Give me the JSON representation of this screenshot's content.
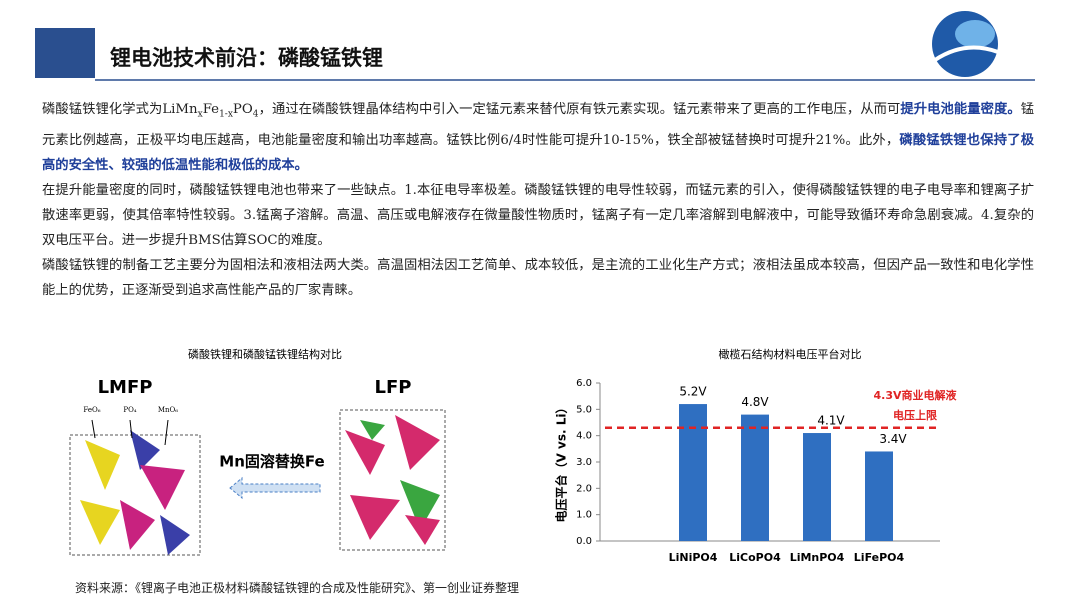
{
  "header": {
    "title": "锂电池技术前沿：磷酸锰铁锂"
  },
  "paragraphs": [
    {
      "segments": [
        {
          "t": "磷酸锰铁锂化学式为LiMn",
          "kind": "normal"
        },
        {
          "t": "x",
          "kind": "sub"
        },
        {
          "t": "Fe",
          "kind": "normal"
        },
        {
          "t": "1-x",
          "kind": "sub"
        },
        {
          "t": "PO",
          "kind": "normal"
        },
        {
          "t": "4",
          "kind": "sub"
        },
        {
          "t": "，通过在磷酸铁锂晶体结构中引入一定锰元素来替代原有铁元素实现。锰元素带来了更高的工作电压，从而可",
          "kind": "normal"
        },
        {
          "t": "提升电池能量密度。",
          "kind": "bold"
        },
        {
          "t": "锰元素比例越高，正极平均电压越高，电池能量密度和输出功率越高。锰铁比例6/4时性能可提升10-15%，铁全部被锰替换时可提升21%。此外，",
          "kind": "normal"
        },
        {
          "t": "磷酸锰铁锂也保持了极高的安全性、较强的低温性能和极低的成本。",
          "kind": "bold"
        }
      ]
    },
    {
      "segments": [
        {
          "t": "在提升能量密度的同时，磷酸锰铁锂电池也带来了一些缺点。1.本征电导率极差。磷酸锰铁锂的电导性较弱，而锰元素的引入，使得磷酸锰铁锂的电子电导率和锂离子扩散速率更弱，使其倍率特性较弱。3.锰离子溶解。高温、高压或电解液存在微量酸性物质时，锰离子有一定几率溶解到电解液中，可能导致循环寿命急剧衰减。4.复杂的双电压平台。进一步提升BMS估算SOC的难度。",
          "kind": "normal"
        }
      ]
    },
    {
      "segments": [
        {
          "t": "磷酸锰铁锂的制备工艺主要分为固相法和液相法两大类。高温固相法因工艺简单、成本较低，是主流的工业化生产方式；液相法虽成本较高，但因产品一致性和电化学性能上的优势，正逐渐受到追求高性能产品的厂家青睐。",
          "kind": "normal"
        }
      ]
    }
  ],
  "figure": {
    "caption": "磷酸铁锂和磷酸锰铁锂结构对比",
    "left_label": "LMFP",
    "right_label": "LFP",
    "arrow_label": "Mn固溶替换Fe",
    "legend": [
      "FeO₆",
      "PO₄",
      "MnO₆"
    ]
  },
  "chart_data": {
    "type": "bar",
    "title": "橄榄石结构材料电压平台对比",
    "ylabel": "电压平台（V vs. Li）",
    "categories": [
      "LiNiPO4",
      "LiCoPO4",
      "LiMnPO4",
      "LiFePO4"
    ],
    "values": [
      5.2,
      4.8,
      4.1,
      3.4
    ],
    "value_labels": [
      "5.2V",
      "4.8V",
      "4.1V",
      "3.4V"
    ],
    "color": "#2f6fc1",
    "ylim": [
      0,
      6
    ],
    "yticks": [
      {
        "value": 0,
        "label": "0.0"
      },
      {
        "value": 1,
        "label": "1.0"
      },
      {
        "value": 2,
        "label": "2.0"
      },
      {
        "value": 3,
        "label": "3.0"
      },
      {
        "value": 4,
        "label": "4.0"
      },
      {
        "value": 5,
        "label": "5.0"
      },
      {
        "value": 6,
        "label": "6.0"
      }
    ],
    "reference_line": {
      "value": 4.3,
      "color": "#e02424",
      "labels": [
        "4.3V商业电解液",
        "电压上限"
      ]
    }
  },
  "footer": {
    "source": "资料来源：《锂离子电池正极材料磷酸锰铁锂的合成及性能研究》、第一创业证券整理"
  }
}
